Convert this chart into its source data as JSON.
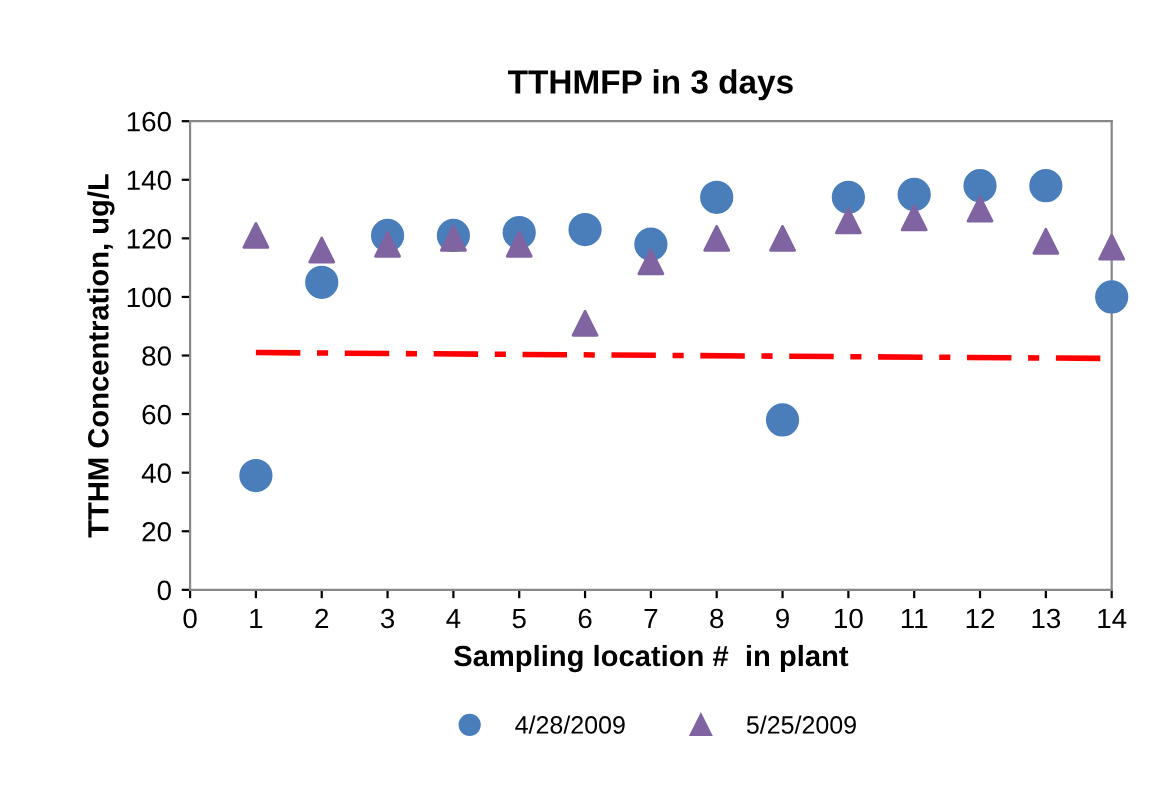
{
  "chart_data": {
    "type": "scatter",
    "title": "TTHMFP in 3 days",
    "xlabel": "Sampling location #  in plant",
    "ylabel": "TTHM Concentration, ug/L",
    "x": [
      1,
      2,
      3,
      4,
      5,
      6,
      7,
      8,
      9,
      10,
      11,
      12,
      13,
      14
    ],
    "series": [
      {
        "name": "4/28/2009",
        "color": "#4a7ebb",
        "marker": "circle",
        "values": [
          39,
          105,
          121,
          121,
          122,
          123,
          118,
          134,
          58,
          134,
          135,
          138,
          138,
          100
        ]
      },
      {
        "name": "5/25/2009",
        "color": "#8064a2",
        "marker": "triangle",
        "values": [
          121,
          116,
          118,
          120,
          118,
          91,
          112,
          120,
          120,
          126,
          127,
          130,
          119,
          117
        ]
      },
      {
        "type": "line",
        "color": "#ff0000",
        "line_style": "dashed",
        "x": [
          1,
          14
        ],
        "values": [
          81,
          79
        ]
      }
    ],
    "xlim": [
      0,
      14
    ],
    "xticks": [
      0,
      1,
      2,
      3,
      4,
      5,
      6,
      7,
      8,
      9,
      10,
      11,
      12,
      13,
      14
    ],
    "ylim": [
      0,
      160
    ],
    "yticks": [
      0,
      20,
      40,
      60,
      80,
      100,
      120,
      140,
      160
    ],
    "grid": false,
    "legend": "bottom"
  }
}
